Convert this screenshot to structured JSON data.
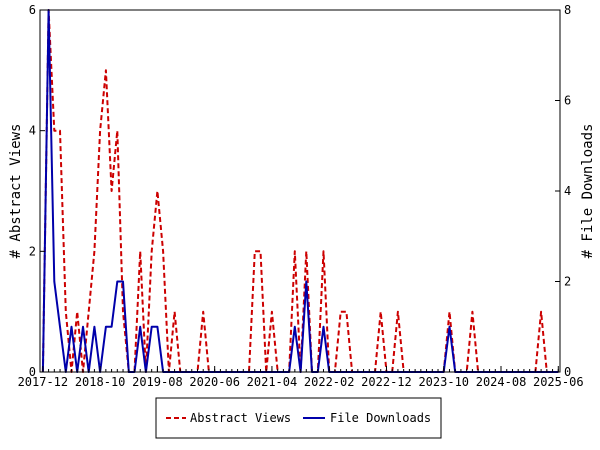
{
  "chart_data": {
    "type": "line",
    "title": "",
    "ylabel": "# Abstract Views",
    "y2label": "# File Downloads",
    "x_tick_labels": [
      "2017-12",
      "2018-10",
      "2019-08",
      "2020-06",
      "2021-04",
      "2022-02",
      "2022-12",
      "2023-10",
      "2024-08",
      "2025-06"
    ],
    "x_range": [
      "2017-12",
      "2025-06"
    ],
    "ylim": [
      0,
      6
    ],
    "y_ticks": [
      0,
      2,
      4,
      6
    ],
    "y2lim": [
      0,
      8
    ],
    "y2_ticks": [
      0,
      2,
      4,
      6,
      8
    ],
    "legend_position": "bottom",
    "series": [
      {
        "name": "Abstract Views",
        "axis": "left",
        "color": "#cc0000",
        "style": "dashed",
        "points": [
          [
            "2017-12",
            0
          ],
          [
            "2018-01",
            6
          ],
          [
            "2018-02",
            4
          ],
          [
            "2018-03",
            4
          ],
          [
            "2018-04",
            1
          ],
          [
            "2018-05",
            0
          ],
          [
            "2018-06",
            1
          ],
          [
            "2018-07",
            0
          ],
          [
            "2018-08",
            1
          ],
          [
            "2018-09",
            2
          ],
          [
            "2018-10",
            4
          ],
          [
            "2018-11",
            5
          ],
          [
            "2018-12",
            3
          ],
          [
            "2019-01",
            4
          ],
          [
            "2019-02",
            1
          ],
          [
            "2019-03",
            0
          ],
          [
            "2019-04",
            0
          ],
          [
            "2019-05",
            2
          ],
          [
            "2019-06",
            0
          ],
          [
            "2019-07",
            2
          ],
          [
            "2019-08",
            3
          ],
          [
            "2019-09",
            2
          ],
          [
            "2019-10",
            0
          ],
          [
            "2019-11",
            1
          ],
          [
            "2019-12",
            0
          ],
          [
            "2020-01",
            0
          ],
          [
            "2020-02",
            0
          ],
          [
            "2020-03",
            0
          ],
          [
            "2020-04",
            1
          ],
          [
            "2020-05",
            0
          ],
          [
            "2020-06",
            0
          ],
          [
            "2020-07",
            0
          ],
          [
            "2020-08",
            0
          ],
          [
            "2020-09",
            0
          ],
          [
            "2020-10",
            0
          ],
          [
            "2020-11",
            0
          ],
          [
            "2020-12",
            0
          ],
          [
            "2021-01",
            2
          ],
          [
            "2021-02",
            2
          ],
          [
            "2021-03",
            0
          ],
          [
            "2021-04",
            1
          ],
          [
            "2021-05",
            0
          ],
          [
            "2021-06",
            0
          ],
          [
            "2021-07",
            0
          ],
          [
            "2021-08",
            2
          ],
          [
            "2021-09",
            0
          ],
          [
            "2021-10",
            2
          ],
          [
            "2021-11",
            0
          ],
          [
            "2021-12",
            0
          ],
          [
            "2022-01",
            2
          ],
          [
            "2022-02",
            0
          ],
          [
            "2022-03",
            0
          ],
          [
            "2022-04",
            1
          ],
          [
            "2022-05",
            1
          ],
          [
            "2022-06",
            0
          ],
          [
            "2022-07",
            0
          ],
          [
            "2022-08",
            0
          ],
          [
            "2022-09",
            0
          ],
          [
            "2022-10",
            0
          ],
          [
            "2022-11",
            1
          ],
          [
            "2022-12",
            0
          ],
          [
            "2023-01",
            0
          ],
          [
            "2023-02",
            1
          ],
          [
            "2023-03",
            0
          ],
          [
            "2023-04",
            0
          ],
          [
            "2023-05",
            0
          ],
          [
            "2023-06",
            0
          ],
          [
            "2023-07",
            0
          ],
          [
            "2023-08",
            0
          ],
          [
            "2023-09",
            0
          ],
          [
            "2023-10",
            0
          ],
          [
            "2023-11",
            1
          ],
          [
            "2023-12",
            0
          ],
          [
            "2024-01",
            0
          ],
          [
            "2024-02",
            0
          ],
          [
            "2024-03",
            1
          ],
          [
            "2024-04",
            0
          ],
          [
            "2024-05",
            0
          ],
          [
            "2024-06",
            0
          ],
          [
            "2024-07",
            0
          ],
          [
            "2024-08",
            0
          ],
          [
            "2024-09",
            0
          ],
          [
            "2024-10",
            0
          ],
          [
            "2024-11",
            0
          ],
          [
            "2024-12",
            0
          ],
          [
            "2025-01",
            0
          ],
          [
            "2025-02",
            0
          ],
          [
            "2025-03",
            1
          ],
          [
            "2025-04",
            0
          ],
          [
            "2025-05",
            0
          ],
          [
            "2025-06",
            0
          ]
        ]
      },
      {
        "name": "File Downloads",
        "axis": "right",
        "color": "#0000aa",
        "style": "solid",
        "points": [
          [
            "2017-12",
            0
          ],
          [
            "2018-01",
            8
          ],
          [
            "2018-02",
            2
          ],
          [
            "2018-03",
            1
          ],
          [
            "2018-04",
            0
          ],
          [
            "2018-05",
            1
          ],
          [
            "2018-06",
            0
          ],
          [
            "2018-07",
            1
          ],
          [
            "2018-08",
            0
          ],
          [
            "2018-09",
            1
          ],
          [
            "2018-10",
            0
          ],
          [
            "2018-11",
            1
          ],
          [
            "2018-12",
            1
          ],
          [
            "2019-01",
            2
          ],
          [
            "2019-02",
            2
          ],
          [
            "2019-03",
            0
          ],
          [
            "2019-04",
            0
          ],
          [
            "2019-05",
            1
          ],
          [
            "2019-06",
            0
          ],
          [
            "2019-07",
            1
          ],
          [
            "2019-08",
            1
          ],
          [
            "2019-09",
            0
          ],
          [
            "2019-10",
            0
          ],
          [
            "2019-11",
            0
          ],
          [
            "2019-12",
            0
          ],
          [
            "2020-01",
            0
          ],
          [
            "2020-02",
            0
          ],
          [
            "2020-03",
            0
          ],
          [
            "2020-04",
            0
          ],
          [
            "2020-05",
            0
          ],
          [
            "2020-06",
            0
          ],
          [
            "2020-07",
            0
          ],
          [
            "2020-08",
            0
          ],
          [
            "2020-09",
            0
          ],
          [
            "2020-10",
            0
          ],
          [
            "2020-11",
            0
          ],
          [
            "2020-12",
            0
          ],
          [
            "2021-01",
            0
          ],
          [
            "2021-02",
            0
          ],
          [
            "2021-03",
            0
          ],
          [
            "2021-04",
            0
          ],
          [
            "2021-05",
            0
          ],
          [
            "2021-06",
            0
          ],
          [
            "2021-07",
            0
          ],
          [
            "2021-08",
            1
          ],
          [
            "2021-09",
            0
          ],
          [
            "2021-10",
            2
          ],
          [
            "2021-11",
            0
          ],
          [
            "2021-12",
            0
          ],
          [
            "2022-01",
            1
          ],
          [
            "2022-02",
            0
          ],
          [
            "2022-03",
            0
          ],
          [
            "2022-04",
            0
          ],
          [
            "2022-05",
            0
          ],
          [
            "2022-06",
            0
          ],
          [
            "2022-07",
            0
          ],
          [
            "2022-08",
            0
          ],
          [
            "2022-09",
            0
          ],
          [
            "2022-10",
            0
          ],
          [
            "2022-11",
            0
          ],
          [
            "2022-12",
            0
          ],
          [
            "2023-01",
            0
          ],
          [
            "2023-02",
            0
          ],
          [
            "2023-03",
            0
          ],
          [
            "2023-04",
            0
          ],
          [
            "2023-05",
            0
          ],
          [
            "2023-06",
            0
          ],
          [
            "2023-07",
            0
          ],
          [
            "2023-08",
            0
          ],
          [
            "2023-09",
            0
          ],
          [
            "2023-10",
            0
          ],
          [
            "2023-11",
            1
          ],
          [
            "2023-12",
            0
          ],
          [
            "2024-01",
            0
          ],
          [
            "2024-02",
            0
          ],
          [
            "2024-03",
            0
          ],
          [
            "2024-04",
            0
          ],
          [
            "2024-05",
            0
          ],
          [
            "2024-06",
            0
          ],
          [
            "2024-07",
            0
          ],
          [
            "2024-08",
            0
          ],
          [
            "2024-09",
            0
          ],
          [
            "2024-10",
            0
          ],
          [
            "2024-11",
            0
          ],
          [
            "2024-12",
            0
          ],
          [
            "2025-01",
            0
          ],
          [
            "2025-02",
            0
          ],
          [
            "2025-03",
            0
          ],
          [
            "2025-04",
            0
          ],
          [
            "2025-05",
            0
          ],
          [
            "2025-06",
            0
          ]
        ]
      }
    ]
  }
}
